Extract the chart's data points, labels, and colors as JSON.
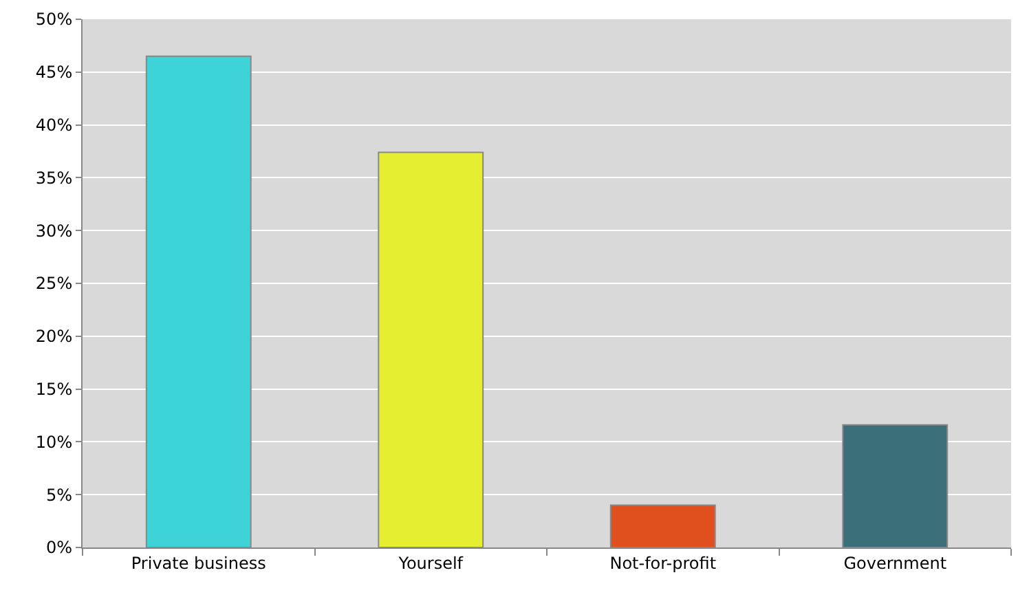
{
  "chart_data": {
    "type": "bar",
    "categories": [
      "Private business",
      "Yourself",
      "Not-for-profit",
      "Government"
    ],
    "values": [
      46.5,
      37.4,
      4.0,
      11.6
    ],
    "colors": [
      "#3ed3d6",
      "#e5ee30",
      "#e0501e",
      "#3b6f7a"
    ],
    "ylim": [
      0,
      50
    ],
    "yticks": [
      {
        "value": 0,
        "label": "0%"
      },
      {
        "value": 5,
        "label": "5%"
      },
      {
        "value": 10,
        "label": "10%"
      },
      {
        "value": 15,
        "label": "15%"
      },
      {
        "value": 20,
        "label": "20%"
      },
      {
        "value": 25,
        "label": "25%"
      },
      {
        "value": 30,
        "label": "30%"
      },
      {
        "value": 35,
        "label": "35%"
      },
      {
        "value": 40,
        "label": "40%"
      },
      {
        "value": 45,
        "label": "45%"
      },
      {
        "value": 50,
        "label": "50%"
      }
    ],
    "grid": "y"
  }
}
